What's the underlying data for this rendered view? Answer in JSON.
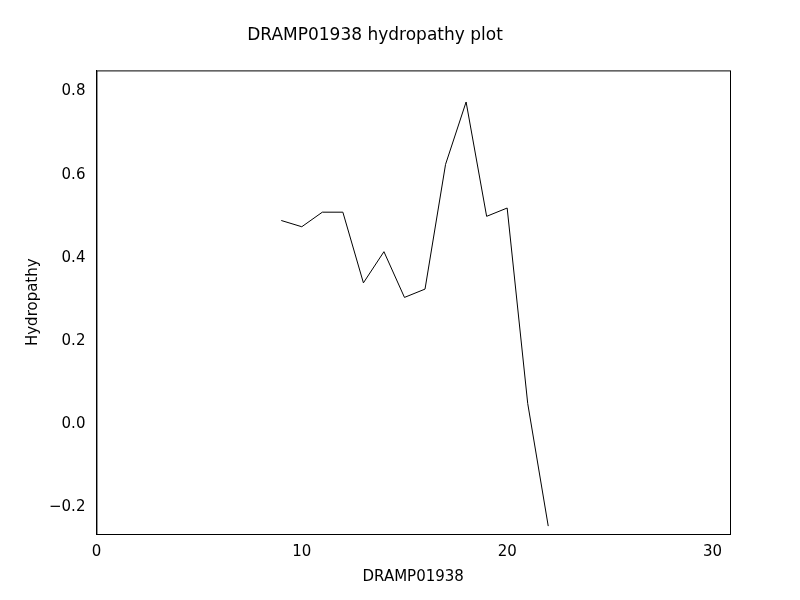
{
  "chart_data": {
    "type": "line",
    "title": "DRAMP01938 hydropathy plot",
    "x_label": "DRAMP01938",
    "y_label": "Hydropathy",
    "x": [
      9,
      10,
      11,
      12,
      13,
      14,
      15,
      16,
      17,
      18,
      19,
      20,
      21,
      22
    ],
    "values": [
      0.49,
      0.475,
      0.51,
      0.51,
      0.34,
      0.415,
      0.305,
      0.325,
      0.625,
      0.775,
      0.5,
      0.52,
      0.05,
      -0.245
    ],
    "color": "#000000",
    "xlim": [
      0,
      30.85
    ],
    "xticks": [
      0,
      10,
      20,
      30
    ],
    "ylim": [
      -0.264,
      0.851
    ],
    "yticks": [
      {
        "value": -0.2,
        "label": "−0.2"
      },
      {
        "value": 0,
        "label": "0.0"
      },
      {
        "value": 0.2,
        "label": "0.2"
      },
      {
        "value": 0.4,
        "label": "0.4"
      },
      {
        "value": 0.6,
        "label": "0.6"
      },
      {
        "value": 0.8,
        "label": "0.8"
      }
    ],
    "grid": false
  }
}
